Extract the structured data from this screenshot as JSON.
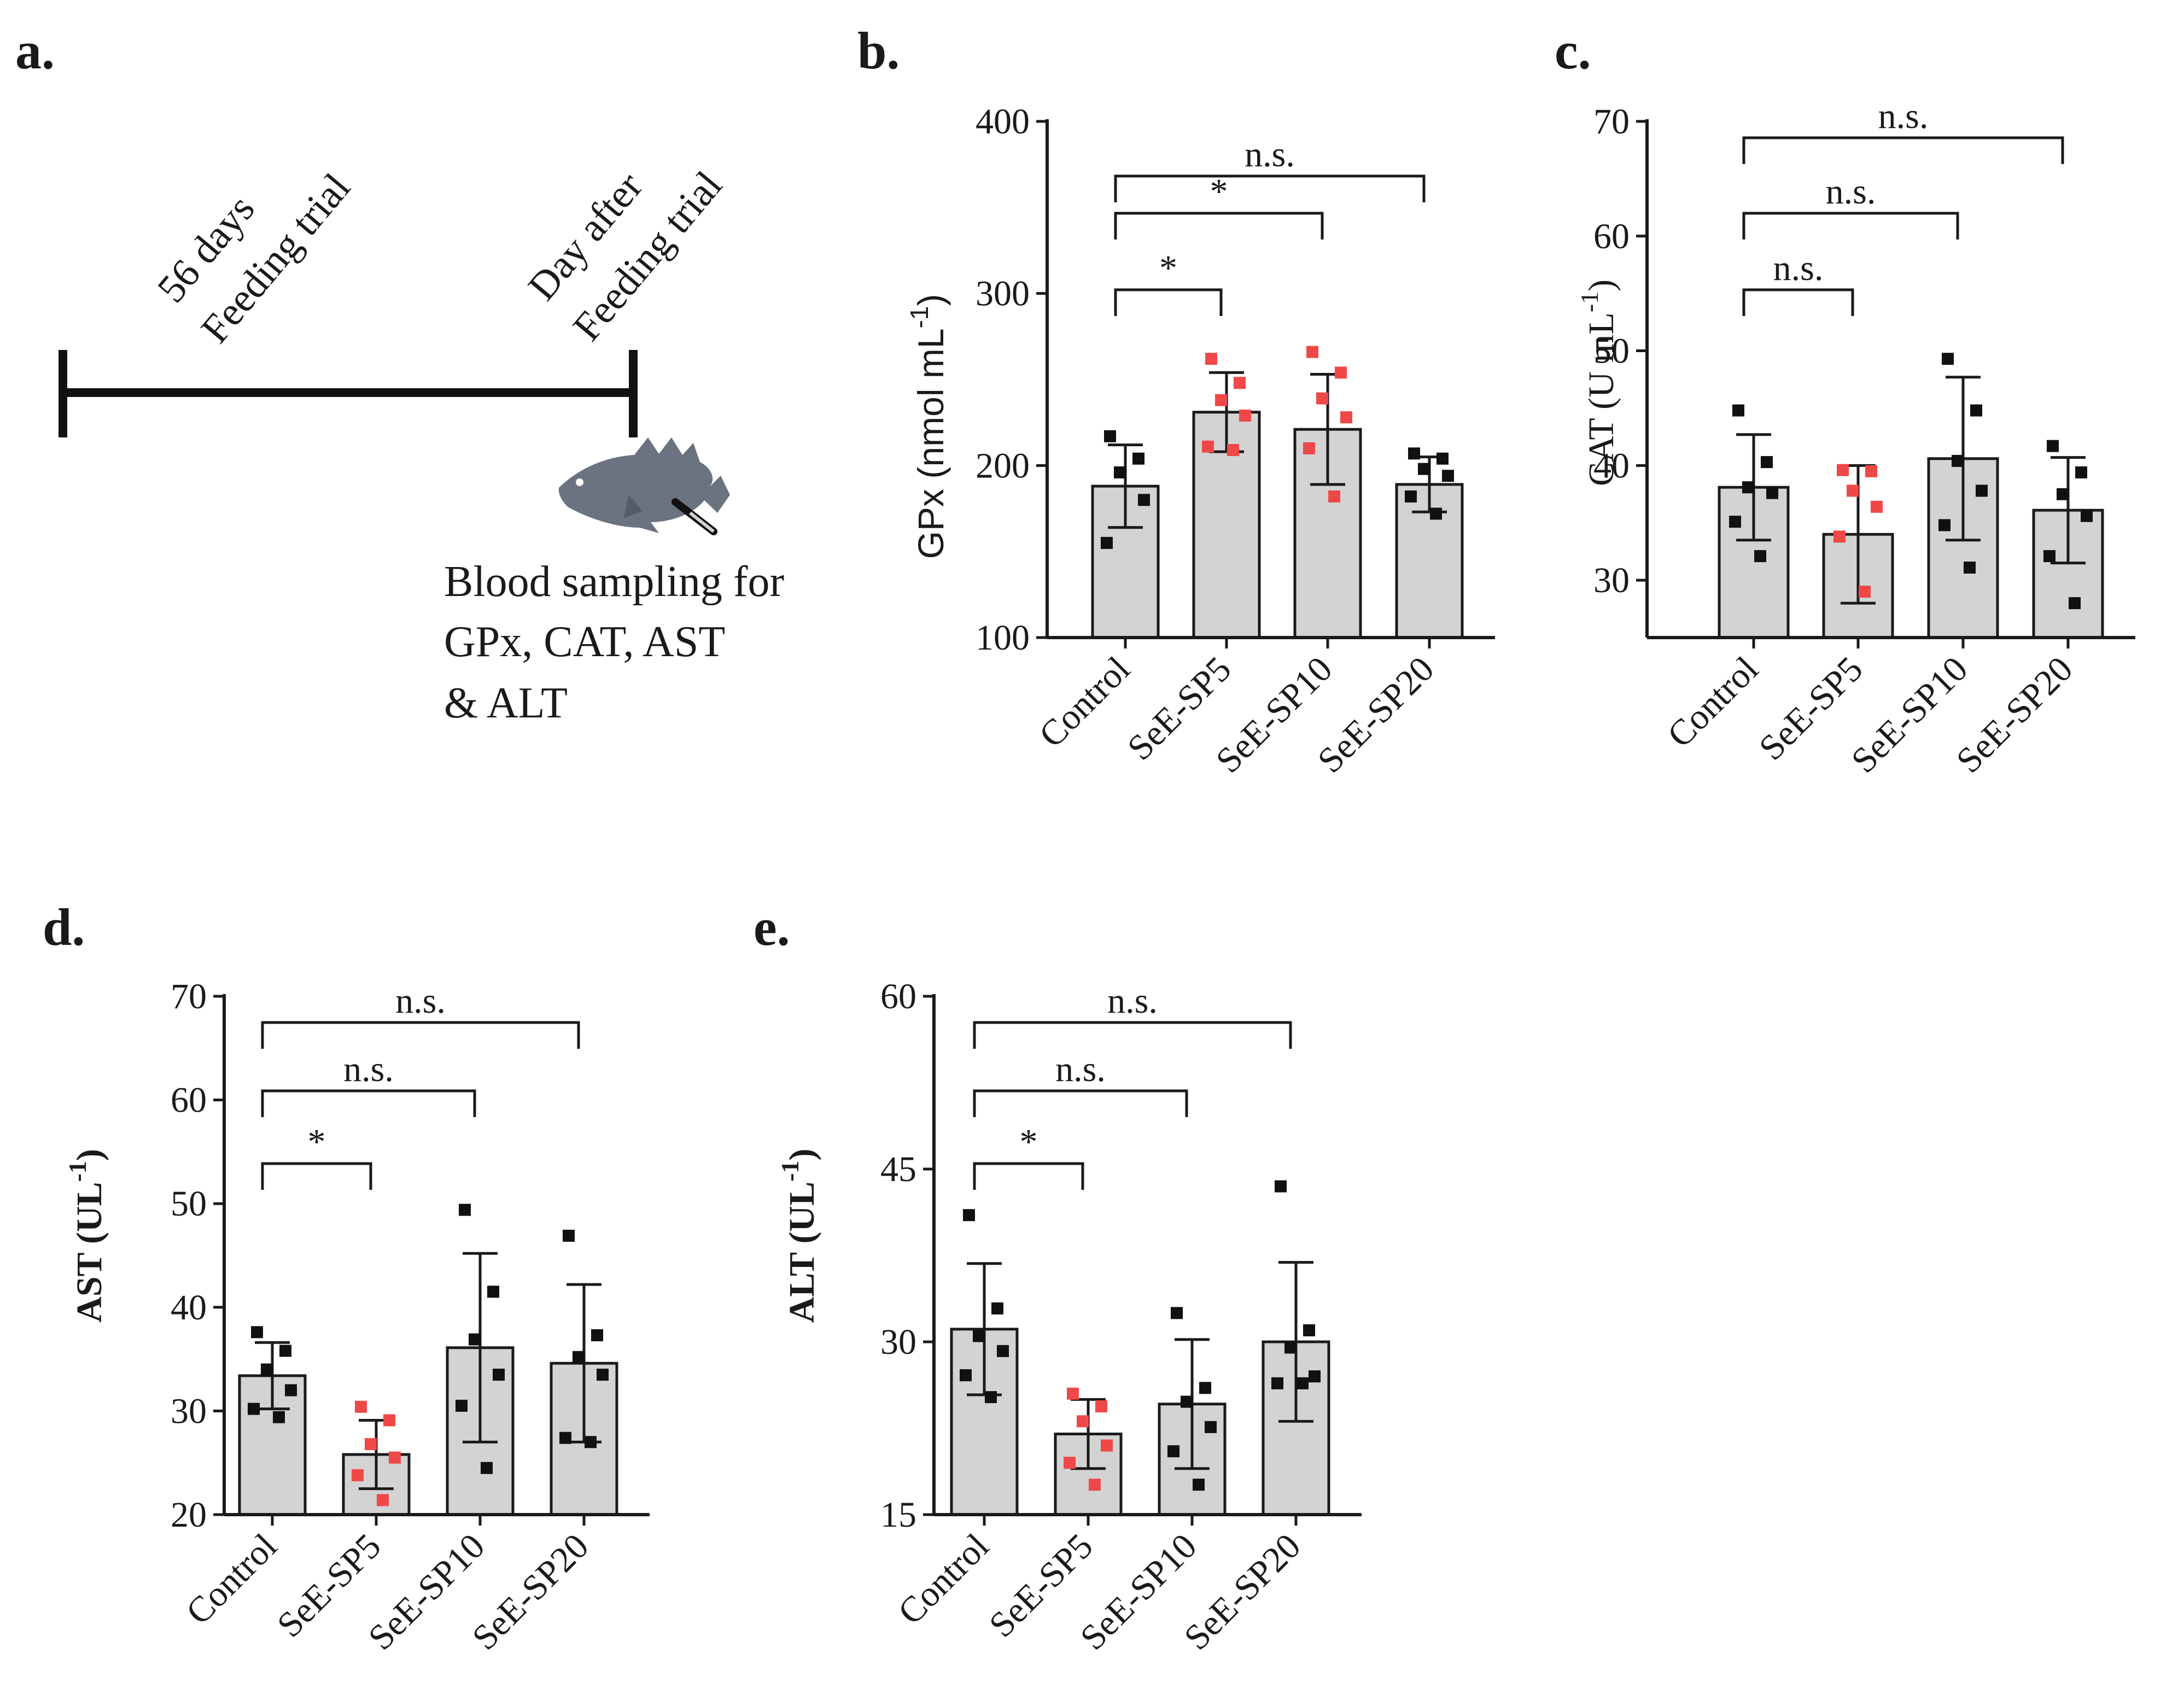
{
  "figure_labels": {
    "a": "a.",
    "b": "b.",
    "c": "c.",
    "d": "d.",
    "e": "e."
  },
  "timeline": {
    "left_label_line1": "56 days",
    "left_label_line2": "Feeding trial",
    "right_label_line1": "Day after",
    "right_label_line2": "Feeding trial",
    "sampling_line1": "Blood sampling for",
    "sampling_line2": "GPx, CAT, AST",
    "sampling_line3": "& ALT",
    "icon": "fish-with-syringe-icon"
  },
  "colors": {
    "bar_fill": "#d3d3d3",
    "axis": "#1a1a1a",
    "control_points": "#111111",
    "treatment_points": "#f04848"
  },
  "chart_data": [
    {
      "id": "b",
      "type": "bar",
      "ylabel": "GPx (nmol mL",
      "ylabel_sup": "-1",
      "ylabel_close": ")",
      "categories": [
        "Control",
        "SeE-SP5",
        "SeE-SP10",
        "SeE-SP20"
      ],
      "ylim": [
        100,
        400
      ],
      "yticks": [
        100,
        200,
        300,
        400
      ],
      "means": [
        188,
        231,
        221,
        189
      ],
      "sd": [
        24,
        23,
        32,
        16
      ],
      "points": [
        [
          217,
          204,
          196,
          180,
          155
        ],
        [
          262,
          248,
          238,
          229,
          211,
          209
        ],
        [
          266,
          254,
          239,
          228,
          210,
          182
        ],
        [
          207,
          204,
          198,
          194,
          182,
          172
        ]
      ],
      "point_colors": [
        "#111111",
        "#f04848",
        "#f04848",
        "#111111"
      ],
      "comparisons": [
        {
          "from": 0,
          "to": 1,
          "label": "*"
        },
        {
          "from": 0,
          "to": 2,
          "label": "*"
        },
        {
          "from": 0,
          "to": 3,
          "label": "n.s."
        }
      ]
    },
    {
      "id": "c",
      "type": "bar",
      "ylabel": "CAT (U mL",
      "ylabel_sup": "-1",
      "ylabel_close": ")",
      "categories": [
        "Control",
        "SeE-SP5",
        "SeE-SP10",
        "SeE-SP20"
      ],
      "ylim": [
        25,
        70
      ],
      "yticks": [
        30,
        40,
        50,
        60,
        70
      ],
      "means": [
        38.1,
        34.0,
        40.6,
        36.1
      ],
      "sd": [
        4.6,
        6.0,
        7.1,
        4.6
      ],
      "points": [
        [
          44.8,
          40.3,
          38.1,
          37.6,
          35.1,
          32.1
        ],
        [
          39.6,
          39.5,
          37.8,
          36.4,
          33.8,
          29.0
        ],
        [
          49.3,
          44.8,
          40.4,
          37.8,
          34.8,
          31.1
        ],
        [
          41.7,
          39.4,
          37.5,
          35.6,
          32.1,
          28.0
        ]
      ],
      "point_colors": [
        "#111111",
        "#f04848",
        "#111111",
        "#111111"
      ],
      "comparisons": [
        {
          "from": 0,
          "to": 1,
          "label": "n.s."
        },
        {
          "from": 0,
          "to": 2,
          "label": "n.s."
        },
        {
          "from": 0,
          "to": 3,
          "label": "n.s."
        }
      ]
    },
    {
      "id": "d",
      "type": "bar",
      "ylabel": "AST (UL",
      "ylabel_sup": "-1",
      "ylabel_close": ")",
      "categories": [
        "Control",
        "SeE-SP5",
        "SeE-SP10",
        "SeE-SP20"
      ],
      "ylim": [
        20,
        70
      ],
      "yticks": [
        20,
        30,
        40,
        50,
        60,
        70
      ],
      "means": [
        33.4,
        25.8,
        36.1,
        34.6
      ],
      "sd": [
        3.2,
        3.3,
        9.1,
        7.6
      ],
      "points": [
        [
          37.6,
          35.8,
          34.0,
          32.0,
          30.2,
          29.4
        ],
        [
          30.4,
          29.1,
          26.8,
          25.5,
          23.8,
          21.4
        ],
        [
          49.4,
          41.5,
          36.9,
          33.5,
          30.5,
          24.5
        ],
        [
          46.9,
          37.3,
          35.2,
          33.5,
          27.4,
          27.0
        ]
      ],
      "point_colors": [
        "#111111",
        "#f04848",
        "#111111",
        "#111111"
      ],
      "comparisons": [
        {
          "from": 0,
          "to": 1,
          "label": "*"
        },
        {
          "from": 0,
          "to": 2,
          "label": "n.s."
        },
        {
          "from": 0,
          "to": 3,
          "label": "n.s."
        }
      ]
    },
    {
      "id": "e",
      "type": "bar",
      "ylabel": "ALT (UL",
      "ylabel_sup": "-1",
      "ylabel_close": ")",
      "categories": [
        "Control",
        "SeE-SP5",
        "SeE-SP10",
        "SeE-SP20"
      ],
      "ylim": [
        15,
        60
      ],
      "yticks": [
        15,
        30,
        45,
        60
      ],
      "means": [
        31.1,
        22.0,
        24.6,
        30.0
      ],
      "sd": [
        5.7,
        3.0,
        5.6,
        6.9
      ],
      "points": [
        [
          41.0,
          32.9,
          30.5,
          29.2,
          27.1,
          25.2
        ],
        [
          25.5,
          24.4,
          23.1,
          21.0,
          19.5,
          17.6
        ],
        [
          32.5,
          26.0,
          24.8,
          22.6,
          20.5,
          17.6
        ],
        [
          43.5,
          31.0,
          29.5,
          27.0,
          26.4,
          26.4
        ]
      ],
      "point_colors": [
        "#111111",
        "#f04848",
        "#111111",
        "#111111"
      ],
      "comparisons": [
        {
          "from": 0,
          "to": 1,
          "label": "*"
        },
        {
          "from": 0,
          "to": 2,
          "label": "n.s."
        },
        {
          "from": 0,
          "to": 3,
          "label": "n.s."
        }
      ]
    }
  ]
}
